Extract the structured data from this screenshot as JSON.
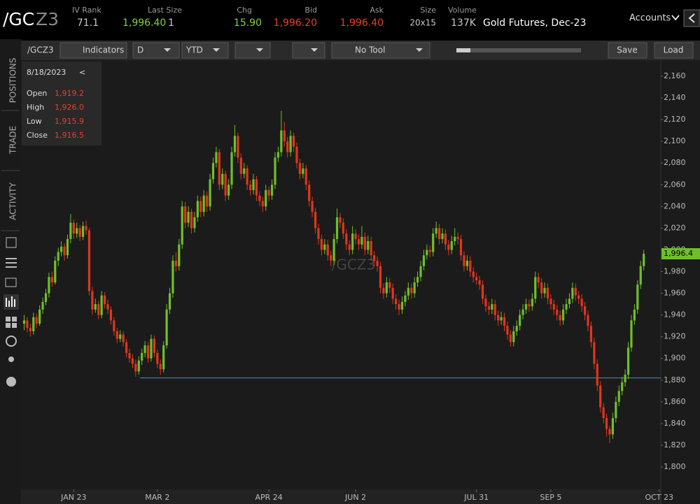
{
  "header": {
    "symbol_root": "/GC",
    "symbol_suffix": "Z3",
    "iv_rank_label": "IV Rank",
    "iv_rank": "71.1",
    "last_size_label": "Last Size",
    "last": "1,996.40",
    "last_size": "1",
    "chg_label": "Chg",
    "chg": "15.90",
    "bid_label": "Bid",
    "bid": "1,996.20",
    "ask_label": "Ask",
    "ask": "1,996.40",
    "size_label": "Size",
    "size": "20x15",
    "volume_label": "Volume",
    "volume": "137K",
    "description": "Gold Futures, Dec-23",
    "accounts": "Accounts"
  },
  "toolbar": {
    "symbol": "/GCZ3",
    "indicators": "Indicators",
    "aggregation": "D",
    "range": "YTD",
    "tool": "No Tool",
    "save": "Save",
    "load": "Load"
  },
  "sidebar": {
    "tabs": [
      "POSITIONS",
      "TRADE",
      "ACTIVITY"
    ]
  },
  "info_box": {
    "date": "8/18/2023",
    "collapse": "<",
    "rows": [
      {
        "label": "Open",
        "value": "1,919.2"
      },
      {
        "label": "High",
        "value": "1,926.0"
      },
      {
        "label": "Low",
        "value": "1,915.9"
      },
      {
        "label": "Close",
        "value": "1,916.5"
      }
    ]
  },
  "chart_data": {
    "type": "candlestick",
    "watermark": "/GCZ3",
    "up_color": "#6fbf2a",
    "down_color": "#e0361c",
    "categories": [
      null,
      null,
      null,
      null,
      null,
      null,
      null,
      null,
      null,
      null,
      null,
      null,
      null,
      null,
      null,
      null,
      "JAN 23",
      null,
      null,
      null,
      null,
      null,
      null,
      null,
      null,
      null,
      null,
      null,
      null,
      null,
      null,
      null,
      null,
      null,
      null,
      null,
      null,
      null,
      null,
      null,
      null,
      null,
      null,
      "MAR 2",
      null,
      null,
      null,
      null,
      null,
      null,
      null,
      null,
      null,
      null,
      null,
      null,
      null,
      null,
      null,
      null,
      null,
      null,
      null,
      null,
      null,
      null,
      null,
      null,
      null,
      null,
      null,
      null,
      null,
      null,
      null,
      null,
      null,
      null,
      null,
      "APR 24",
      null,
      null,
      null,
      null,
      null,
      null,
      null,
      null,
      null,
      null,
      null,
      null,
      null,
      null,
      null,
      null,
      null,
      null,
      null,
      null,
      null,
      null,
      null,
      null,
      null,
      null,
      null,
      "JUN 2",
      null,
      null,
      null,
      null,
      null,
      null,
      null,
      null,
      null,
      null,
      null,
      null,
      null,
      null,
      null,
      null,
      null,
      null,
      null,
      null,
      null,
      null,
      null,
      null,
      null,
      null,
      null,
      null,
      null,
      null,
      null,
      null,
      null,
      null,
      null,
      null,
      null,
      null,
      "JUL 31",
      null,
      null,
      null,
      null,
      null,
      null,
      null,
      null,
      null,
      null,
      null,
      null,
      null,
      null,
      null,
      null,
      null,
      null,
      null,
      null,
      null,
      null,
      null,
      "SEP 5",
      null,
      null,
      null,
      null,
      null,
      null,
      null,
      null,
      null,
      null,
      null,
      null,
      null,
      null,
      null,
      null,
      null,
      null,
      null,
      null,
      null,
      null,
      null,
      null,
      null,
      null,
      null,
      null,
      null,
      null,
      null,
      null,
      null,
      null,
      "OCT 23"
    ],
    "candles": [
      [
        1932,
        1940,
        1926,
        1935
      ],
      [
        1935,
        1938,
        1924,
        1928
      ],
      [
        1928,
        1932,
        1920,
        1925
      ],
      [
        1925,
        1942,
        1922,
        1938
      ],
      [
        1938,
        1941,
        1928,
        1932
      ],
      [
        1932,
        1949,
        1930,
        1945
      ],
      [
        1945,
        1956,
        1941,
        1952
      ],
      [
        1952,
        1964,
        1949,
        1960
      ],
      [
        1960,
        1979,
        1956,
        1975
      ],
      [
        1975,
        1980,
        1966,
        1970
      ],
      [
        1970,
        1994,
        1968,
        1990
      ],
      [
        1990,
        2002,
        1985,
        1998
      ],
      [
        1998,
        2008,
        1994,
        2003
      ],
      [
        2003,
        2006,
        1990,
        1995
      ],
      [
        1995,
        2014,
        1992,
        2010
      ],
      [
        2010,
        2033,
        2006,
        2025
      ],
      [
        2025,
        2028,
        2010,
        2015
      ],
      [
        2015,
        2025,
        2011,
        2020
      ],
      [
        2020,
        2023,
        2008,
        2012
      ],
      [
        2012,
        2026,
        2009,
        2022
      ],
      [
        2022,
        2027,
        2014,
        2018
      ],
      [
        2018,
        2020,
        1958,
        1962
      ],
      [
        1962,
        1966,
        1940,
        1945
      ],
      [
        1945,
        1955,
        1942,
        1950
      ],
      [
        1950,
        1953,
        1936,
        1940
      ],
      [
        1940,
        1962,
        1937,
        1958
      ],
      [
        1958,
        1961,
        1946,
        1950
      ],
      [
        1950,
        1954,
        1941,
        1945
      ],
      [
        1945,
        1948,
        1931,
        1935
      ],
      [
        1935,
        1938,
        1921,
        1925
      ],
      [
        1925,
        1928,
        1914,
        1918
      ],
      [
        1918,
        1926,
        1915,
        1922
      ],
      [
        1922,
        1925,
        1911,
        1915
      ],
      [
        1915,
        1918,
        1901,
        1905
      ],
      [
        1905,
        1909,
        1896,
        1900
      ],
      [
        1900,
        1904,
        1891,
        1895
      ],
      [
        1895,
        1899,
        1883,
        1888
      ],
      [
        1888,
        1902,
        1885,
        1898
      ],
      [
        1898,
        1909,
        1894,
        1905
      ],
      [
        1905,
        1916,
        1901,
        1912
      ],
      [
        1912,
        1915,
        1896,
        1900
      ],
      [
        1900,
        1922,
        1897,
        1918
      ],
      [
        1918,
        1921,
        1901,
        1905
      ],
      [
        1905,
        1908,
        1891,
        1895
      ],
      [
        1895,
        1899,
        1885,
        1890
      ],
      [
        1890,
        1916,
        1887,
        1912
      ],
      [
        1912,
        1950,
        1909,
        1945
      ],
      [
        1945,
        1965,
        1941,
        1960
      ],
      [
        1960,
        1995,
        1956,
        1990
      ],
      [
        1990,
        1998,
        1980,
        1985
      ],
      [
        1985,
        2010,
        1981,
        2005
      ],
      [
        2005,
        2045,
        2001,
        2040
      ],
      [
        2040,
        2044,
        2020,
        2025
      ],
      [
        2025,
        2040,
        2021,
        2035
      ],
      [
        2035,
        2038,
        2015,
        2020
      ],
      [
        2020,
        2035,
        2016,
        2030
      ],
      [
        2030,
        2050,
        2026,
        2045
      ],
      [
        2045,
        2049,
        2030,
        2035
      ],
      [
        2035,
        2055,
        2031,
        2050
      ],
      [
        2050,
        2054,
        2035,
        2040
      ],
      [
        2040,
        2070,
        2036,
        2065
      ],
      [
        2065,
        2085,
        2061,
        2080
      ],
      [
        2080,
        2095,
        2076,
        2090
      ],
      [
        2090,
        2093,
        2055,
        2060
      ],
      [
        2060,
        2075,
        2056,
        2070
      ],
      [
        2070,
        2073,
        2045,
        2050
      ],
      [
        2050,
        2065,
        2046,
        2060
      ],
      [
        2060,
        2095,
        2056,
        2090
      ],
      [
        2090,
        2115,
        2086,
        2105
      ],
      [
        2105,
        2108,
        2080,
        2085
      ],
      [
        2085,
        2089,
        2065,
        2070
      ],
      [
        2070,
        2080,
        2066,
        2075
      ],
      [
        2075,
        2078,
        2055,
        2060
      ],
      [
        2060,
        2064,
        2050,
        2055
      ],
      [
        2055,
        2070,
        2051,
        2065
      ],
      [
        2065,
        2068,
        2045,
        2050
      ],
      [
        2050,
        2054,
        2040,
        2045
      ],
      [
        2045,
        2049,
        2035,
        2040
      ],
      [
        2040,
        2060,
        2036,
        2055
      ],
      [
        2055,
        2058,
        2045,
        2050
      ],
      [
        2050,
        2065,
        2046,
        2060
      ],
      [
        2060,
        2090,
        2056,
        2085
      ],
      [
        2085,
        2095,
        2081,
        2090
      ],
      [
        2090,
        2128,
        2086,
        2110
      ],
      [
        2110,
        2118,
        2095,
        2100
      ],
      [
        2100,
        2104,
        2085,
        2090
      ],
      [
        2090,
        2110,
        2086,
        2105
      ],
      [
        2105,
        2108,
        2090,
        2095
      ],
      [
        2095,
        2099,
        2075,
        2080
      ],
      [
        2080,
        2084,
        2065,
        2070
      ],
      [
        2070,
        2080,
        2066,
        2075
      ],
      [
        2075,
        2078,
        2055,
        2060
      ],
      [
        2060,
        2064,
        2040,
        2045
      ],
      [
        2045,
        2049,
        2030,
        2035
      ],
      [
        2035,
        2039,
        2015,
        2020
      ],
      [
        2020,
        2024,
        2005,
        2010
      ],
      [
        2010,
        2014,
        1995,
        2000
      ],
      [
        2000,
        2010,
        1996,
        2005
      ],
      [
        2005,
        2009,
        1990,
        1995
      ],
      [
        1995,
        1999,
        1985,
        1990
      ],
      [
        1990,
        2015,
        1986,
        2010
      ],
      [
        2010,
        2038,
        2006,
        2030
      ],
      [
        2030,
        2034,
        2020,
        2025
      ],
      [
        2025,
        2029,
        2010,
        2015
      ],
      [
        2015,
        2019,
        2000,
        2005
      ],
      [
        2005,
        2009,
        1995,
        2000
      ],
      [
        2000,
        2022,
        1996,
        2015
      ],
      [
        2015,
        2019,
        2005,
        2010
      ],
      [
        2010,
        2014,
        2000,
        2005
      ],
      [
        2005,
        2022,
        2001,
        2012
      ],
      [
        2012,
        2016,
        1995,
        2000
      ],
      [
        2000,
        2013,
        1996,
        2008
      ],
      [
        2008,
        2012,
        1990,
        1995
      ],
      [
        1995,
        1999,
        1985,
        1990
      ],
      [
        1990,
        1994,
        1980,
        1985
      ],
      [
        1985,
        1989,
        1960,
        1965
      ],
      [
        1965,
        1969,
        1955,
        1960
      ],
      [
        1960,
        1975,
        1956,
        1970
      ],
      [
        1970,
        1974,
        1960,
        1965
      ],
      [
        1965,
        1969,
        1950,
        1955
      ],
      [
        1955,
        1959,
        1945,
        1950
      ],
      [
        1950,
        1954,
        1940,
        1945
      ],
      [
        1945,
        1957,
        1941,
        1952
      ],
      [
        1952,
        1962,
        1948,
        1958
      ],
      [
        1958,
        1970,
        1954,
        1965
      ],
      [
        1965,
        1969,
        1955,
        1960
      ],
      [
        1960,
        1975,
        1956,
        1970
      ],
      [
        1970,
        1980,
        1966,
        1975
      ],
      [
        1975,
        1990,
        1971,
        1985
      ],
      [
        1985,
        2000,
        1981,
        1995
      ],
      [
        1995,
        2005,
        1991,
        2000
      ],
      [
        2000,
        2004,
        1993,
        1998
      ],
      [
        1998,
        2020,
        1994,
        2015
      ],
      [
        2015,
        2026,
        2011,
        2020
      ],
      [
        2020,
        2024,
        2005,
        2010
      ],
      [
        2010,
        2020,
        2006,
        2015
      ],
      [
        2015,
        2019,
        2000,
        2005
      ],
      [
        2005,
        2009,
        1995,
        2000
      ],
      [
        2000,
        2013,
        1996,
        2008
      ],
      [
        2008,
        2020,
        2004,
        2012
      ],
      [
        2012,
        2016,
        2005,
        2010
      ],
      [
        2010,
        2014,
        1990,
        1995
      ],
      [
        1995,
        1999,
        1980,
        1985
      ],
      [
        1985,
        1995,
        1981,
        1990
      ],
      [
        1990,
        1994,
        1975,
        1980
      ],
      [
        1980,
        1984,
        1970,
        1975
      ],
      [
        1975,
        1979,
        1968,
        1972
      ],
      [
        1972,
        1976,
        1963,
        1968
      ],
      [
        1968,
        1972,
        1950,
        1955
      ],
      [
        1955,
        1959,
        1943,
        1948
      ],
      [
        1948,
        1952,
        1940,
        1945
      ],
      [
        1945,
        1955,
        1941,
        1950
      ],
      [
        1950,
        1954,
        1935,
        1940
      ],
      [
        1940,
        1944,
        1930,
        1935
      ],
      [
        1935,
        1943,
        1931,
        1938
      ],
      [
        1938,
        1942,
        1925,
        1930
      ],
      [
        1930,
        1934,
        1917,
        1922
      ],
      [
        1922,
        1926,
        1911,
        1915
      ],
      [
        1915,
        1930,
        1911,
        1925
      ],
      [
        1925,
        1935,
        1921,
        1930
      ],
      [
        1930,
        1945,
        1926,
        1940
      ],
      [
        1940,
        1950,
        1936,
        1945
      ],
      [
        1945,
        1955,
        1941,
        1950
      ],
      [
        1950,
        1954,
        1943,
        1948
      ],
      [
        1948,
        1960,
        1944,
        1955
      ],
      [
        1955,
        1980,
        1951,
        1975
      ],
      [
        1975,
        1979,
        1965,
        1970
      ],
      [
        1970,
        1974,
        1955,
        1960
      ],
      [
        1960,
        1970,
        1956,
        1965
      ],
      [
        1965,
        1969,
        1950,
        1955
      ],
      [
        1955,
        1959,
        1945,
        1950
      ],
      [
        1950,
        1954,
        1940,
        1945
      ],
      [
        1945,
        1949,
        1935,
        1940
      ],
      [
        1940,
        1944,
        1930,
        1935
      ],
      [
        1935,
        1950,
        1931,
        1945
      ],
      [
        1945,
        1955,
        1941,
        1950
      ],
      [
        1950,
        1960,
        1946,
        1955
      ],
      [
        1955,
        1970,
        1951,
        1965
      ],
      [
        1965,
        1969,
        1953,
        1958
      ],
      [
        1958,
        1962,
        1950,
        1955
      ],
      [
        1955,
        1959,
        1943,
        1948
      ],
      [
        1948,
        1952,
        1935,
        1940
      ],
      [
        1940,
        1944,
        1925,
        1930
      ],
      [
        1930,
        1934,
        1910,
        1915
      ],
      [
        1915,
        1919,
        1890,
        1895
      ],
      [
        1895,
        1899,
        1870,
        1875
      ],
      [
        1875,
        1879,
        1850,
        1855
      ],
      [
        1855,
        1859,
        1840,
        1845
      ],
      [
        1845,
        1849,
        1828,
        1835
      ],
      [
        1835,
        1838,
        1822,
        1830
      ],
      [
        1830,
        1850,
        1826,
        1845
      ],
      [
        1845,
        1865,
        1841,
        1860
      ],
      [
        1860,
        1875,
        1856,
        1870
      ],
      [
        1870,
        1883,
        1866,
        1878
      ],
      [
        1878,
        1890,
        1874,
        1885
      ],
      [
        1885,
        1915,
        1881,
        1910
      ],
      [
        1910,
        1940,
        1906,
        1935
      ],
      [
        1935,
        1950,
        1931,
        1945
      ],
      [
        1945,
        1972,
        1941,
        1968
      ],
      [
        1968,
        1990,
        1964,
        1985
      ],
      [
        1985,
        2000,
        1981,
        1996.4
      ],
      null,
      null,
      null,
      null,
      null
    ],
    "ylim": [
      1779.4,
      2173.5
    ],
    "yticks": [
      {
        "value": 1800,
        "label": "1,800"
      },
      {
        "value": 1820,
        "label": "1,820"
      },
      {
        "value": 1840,
        "label": "1,840"
      },
      {
        "value": 1860,
        "label": "1,860"
      },
      {
        "value": 1880,
        "label": "1,880"
      },
      {
        "value": 1900,
        "label": "1,900"
      },
      {
        "value": 1920,
        "label": "1,920"
      },
      {
        "value": 1940,
        "label": "1,940"
      },
      {
        "value": 1960,
        "label": "1,960"
      },
      {
        "value": 1980,
        "label": "1,980"
      },
      {
        "value": 2000,
        "label": "2,000"
      },
      {
        "value": 2020,
        "label": "2,020"
      },
      {
        "value": 2040,
        "label": "2,040"
      },
      {
        "value": 2060,
        "label": "2,060"
      },
      {
        "value": 2080,
        "label": "2,080"
      },
      {
        "value": 2100,
        "label": "2,100"
      },
      {
        "value": 2120,
        "label": "2,120"
      },
      {
        "value": 2140,
        "label": "2,140"
      },
      {
        "value": 2160,
        "label": "2,160"
      }
    ],
    "last_price": {
      "value": 1996.4,
      "label": "1,996.4"
    },
    "level_line": 1882
  }
}
